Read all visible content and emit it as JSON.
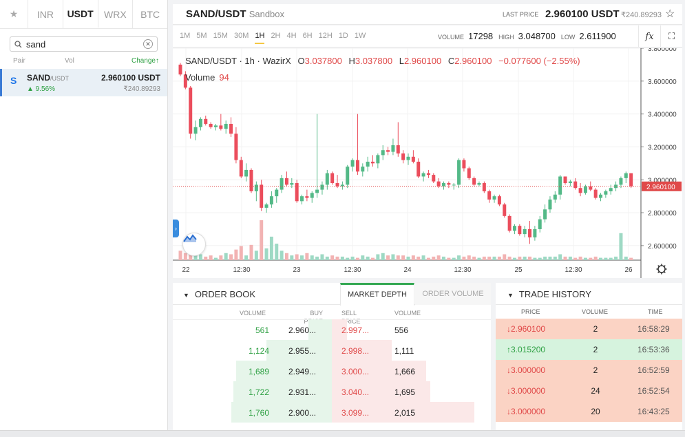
{
  "sidebar": {
    "tabs": [
      {
        "label": "★"
      },
      {
        "label": "INR"
      },
      {
        "label": "USDT"
      },
      {
        "label": "WRX"
      },
      {
        "label": "BTC"
      }
    ],
    "search_value": "sand",
    "columns": {
      "pair": "Pair",
      "vol": "Vol",
      "change": "Change↑"
    },
    "pair": {
      "logo": "S",
      "base": "SAND",
      "quote": "/USDT",
      "change": "▲ 9.56%",
      "price": "2.960100 USDT",
      "inr": "₹240.89293"
    }
  },
  "header": {
    "symbol": "SAND/USDT",
    "mode": "Sandbox",
    "last_price_label": "LAST PRICE",
    "last_price": "2.960100 USDT",
    "last_price_inr": "₹240.89293"
  },
  "toolbar": {
    "intervals": [
      "1M",
      "5M",
      "15M",
      "30M",
      "1H",
      "2H",
      "4H",
      "6H",
      "12H",
      "1D",
      "1W"
    ],
    "active_interval": "1H",
    "volume_label": "VOLUME",
    "volume": "17298",
    "high_label": "HIGH",
    "high": "3.048700",
    "low_label": "LOW",
    "low": "2.611900",
    "fx_icon": "fx",
    "fullscreen_icon": "⛶"
  },
  "chart_legend": {
    "title": "SAND/USDT · 1h · WazirX",
    "o_label": "O",
    "o": "3.037800",
    "h_label": "H",
    "h": "3.037800",
    "l_label": "L",
    "l": "2.960100",
    "c_label": "C",
    "c": "2.960100",
    "change": "−0.077600 (−2.55%)",
    "volume_label": "Volume",
    "volume": "94"
  },
  "chart_data": {
    "type": "candlestick",
    "y_ticks": [
      "3.800000",
      "3.600000",
      "3.400000",
      "3.200000",
      "3.000000",
      "2.800000",
      "2.600000"
    ],
    "ylim": [
      2.52,
      3.8
    ],
    "x_ticks": [
      "22",
      "12:30",
      "23",
      "12:30",
      "24",
      "12:30",
      "25",
      "12:30",
      "26"
    ],
    "last_price_label": "2.960100",
    "last_price": 2.9601,
    "candles_ohlcv": [
      [
        3.7,
        3.71,
        3.63,
        3.64,
        40
      ],
      [
        3.64,
        3.66,
        3.55,
        3.56,
        30
      ],
      [
        3.56,
        3.57,
        3.25,
        3.28,
        55
      ],
      [
        3.28,
        3.36,
        3.24,
        3.32,
        20
      ],
      [
        3.32,
        3.38,
        3.3,
        3.37,
        25
      ],
      [
        3.37,
        3.39,
        3.33,
        3.34,
        15
      ],
      [
        3.34,
        3.35,
        3.31,
        3.32,
        20
      ],
      [
        3.32,
        3.34,
        3.3,
        3.33,
        10
      ],
      [
        3.33,
        3.4,
        3.3,
        3.31,
        20
      ],
      [
        3.31,
        3.36,
        3.28,
        3.34,
        30
      ],
      [
        3.34,
        3.38,
        3.26,
        3.28,
        25
      ],
      [
        3.28,
        3.32,
        3.1,
        3.12,
        45
      ],
      [
        3.12,
        3.14,
        3.01,
        3.02,
        60
      ],
      [
        3.02,
        3.1,
        2.99,
        3.06,
        20
      ],
      [
        3.06,
        3.07,
        2.92,
        2.93,
        65
      ],
      [
        2.93,
        2.99,
        2.87,
        2.97,
        40
      ],
      [
        2.97,
        3.0,
        2.81,
        2.83,
        170
      ],
      [
        2.83,
        2.86,
        2.8,
        2.85,
        50
      ],
      [
        2.85,
        2.93,
        2.83,
        2.9,
        100
      ],
      [
        2.9,
        2.95,
        2.86,
        2.94,
        70
      ],
      [
        2.94,
        3.03,
        2.92,
        3.01,
        40
      ],
      [
        3.01,
        3.05,
        2.96,
        2.97,
        30
      ],
      [
        2.97,
        3.01,
        2.95,
        2.98,
        20
      ],
      [
        2.98,
        3.0,
        2.86,
        2.87,
        25
      ],
      [
        2.87,
        2.91,
        2.85,
        2.9,
        20
      ],
      [
        2.9,
        2.94,
        2.87,
        2.89,
        30
      ],
      [
        2.89,
        2.93,
        2.86,
        2.92,
        20
      ],
      [
        2.92,
        3.4,
        2.89,
        2.94,
        15
      ],
      [
        2.94,
        2.99,
        2.91,
        2.97,
        25
      ],
      [
        2.97,
        3.06,
        2.94,
        3.04,
        15
      ],
      [
        3.04,
        3.05,
        2.97,
        2.98,
        20
      ],
      [
        2.98,
        3.03,
        2.95,
        2.96,
        15
      ],
      [
        2.96,
        2.99,
        2.94,
        2.97,
        15
      ],
      [
        2.97,
        3.09,
        2.95,
        3.08,
        10
      ],
      [
        3.08,
        3.13,
        3.05,
        3.12,
        15
      ],
      [
        3.12,
        3.4,
        3.03,
        3.05,
        10
      ],
      [
        3.05,
        3.1,
        3.02,
        3.08,
        20
      ],
      [
        3.08,
        3.14,
        3.05,
        3.11,
        15
      ],
      [
        3.11,
        3.15,
        3.08,
        3.1,
        10
      ],
      [
        3.1,
        3.16,
        3.07,
        3.15,
        25
      ],
      [
        3.15,
        3.21,
        3.12,
        3.18,
        30
      ],
      [
        3.18,
        3.2,
        3.15,
        3.17,
        20
      ],
      [
        3.17,
        3.25,
        3.15,
        3.21,
        25
      ],
      [
        3.21,
        3.35,
        3.14,
        3.16,
        20
      ],
      [
        3.16,
        3.18,
        3.1,
        3.12,
        20
      ],
      [
        3.12,
        3.16,
        3.09,
        3.14,
        15
      ],
      [
        3.14,
        3.18,
        3.1,
        3.11,
        20
      ],
      [
        3.11,
        3.13,
        3.01,
        3.02,
        15
      ],
      [
        3.02,
        3.05,
        2.99,
        3.04,
        20
      ],
      [
        3.04,
        3.06,
        3.01,
        3.03,
        10
      ],
      [
        3.03,
        3.04,
        2.98,
        2.99,
        15
      ],
      [
        2.99,
        3.01,
        2.95,
        2.96,
        20
      ],
      [
        2.96,
        2.99,
        2.94,
        2.98,
        15
      ],
      [
        2.98,
        2.99,
        2.95,
        2.97,
        10
      ],
      [
        2.97,
        2.98,
        2.94,
        2.97,
        10
      ],
      [
        2.97,
        3.13,
        2.95,
        3.12,
        20
      ],
      [
        3.12,
        3.13,
        3.05,
        3.07,
        15
      ],
      [
        3.07,
        3.08,
        3.0,
        3.01,
        20
      ],
      [
        3.01,
        3.02,
        2.96,
        2.97,
        15
      ],
      [
        2.97,
        2.99,
        2.96,
        2.98,
        10
      ],
      [
        2.98,
        2.99,
        2.92,
        2.93,
        15
      ],
      [
        2.93,
        2.94,
        2.86,
        2.88,
        15
      ],
      [
        2.88,
        2.91,
        2.86,
        2.9,
        15
      ],
      [
        2.9,
        2.91,
        2.84,
        2.85,
        15
      ],
      [
        2.85,
        2.86,
        2.77,
        2.78,
        25
      ],
      [
        2.78,
        2.79,
        2.68,
        2.69,
        15
      ],
      [
        2.69,
        2.73,
        2.67,
        2.72,
        10
      ],
      [
        2.72,
        2.73,
        2.66,
        2.67,
        15
      ],
      [
        2.67,
        2.72,
        2.65,
        2.7,
        15
      ],
      [
        2.7,
        2.75,
        2.61,
        2.65,
        15
      ],
      [
        2.65,
        2.72,
        2.63,
        2.7,
        10
      ],
      [
        2.7,
        2.78,
        2.68,
        2.76,
        10
      ],
      [
        2.76,
        2.85,
        2.74,
        2.82,
        15
      ],
      [
        2.82,
        2.9,
        2.8,
        2.88,
        15
      ],
      [
        2.88,
        2.93,
        2.86,
        2.91,
        15
      ],
      [
        2.91,
        3.03,
        2.88,
        3.02,
        25
      ],
      [
        3.02,
        3.02,
        2.97,
        2.98,
        15
      ],
      [
        2.98,
        3.0,
        2.96,
        2.99,
        15
      ],
      [
        2.99,
        3.01,
        2.94,
        2.95,
        10
      ],
      [
        2.95,
        2.98,
        2.9,
        2.92,
        15
      ],
      [
        2.92,
        2.97,
        2.91,
        2.96,
        10
      ],
      [
        2.96,
        2.99,
        2.93,
        2.94,
        10
      ],
      [
        2.94,
        2.95,
        2.88,
        2.89,
        15
      ],
      [
        2.89,
        2.92,
        2.87,
        2.91,
        10
      ],
      [
        2.91,
        2.94,
        2.89,
        2.93,
        10
      ],
      [
        2.93,
        2.97,
        2.91,
        2.95,
        10
      ],
      [
        2.95,
        2.99,
        2.93,
        2.97,
        15
      ],
      [
        2.97,
        3.02,
        2.95,
        3.01,
        115
      ],
      [
        3.01,
        3.05,
        2.98,
        3.04,
        15
      ],
      [
        3.04,
        3.04,
        2.95,
        2.96,
        10
      ]
    ]
  },
  "orderbook": {
    "title": "ORDER BOOK",
    "tabs": {
      "market_depth": "MARKET DEPTH",
      "order_volume": "ORDER VOLUME"
    },
    "columns": {
      "volume": "VOLUME",
      "buy_price": "BUY PRICE",
      "sell_price": "SELL PRICE",
      "volume2": "VOLUME"
    },
    "rows": [
      {
        "buy_vol": "561",
        "buy_price": "2.960...",
        "sell_price": "2.997...",
        "sell_vol": "556",
        "buy_depth": 0.1,
        "sell_depth": 0.08
      },
      {
        "buy_vol": "1,124",
        "buy_price": "2.955...",
        "sell_price": "2.998...",
        "sell_vol": "1,111",
        "buy_depth": 0.28,
        "sell_depth": 0.31
      },
      {
        "buy_vol": "1,689",
        "buy_price": "2.949...",
        "sell_price": "3.000...",
        "sell_vol": "1,666",
        "buy_depth": 0.41,
        "sell_depth": 0.49
      },
      {
        "buy_vol": "1,722",
        "buy_price": "2.931...",
        "sell_price": "3.040...",
        "sell_vol": "1,695",
        "buy_depth": 0.42,
        "sell_depth": 0.51
      },
      {
        "buy_vol": "1,760",
        "buy_price": "2.900...",
        "sell_price": "3.099...",
        "sell_vol": "2,015",
        "buy_depth": 0.43,
        "sell_depth": 0.74
      }
    ]
  },
  "trades": {
    "title": "TRADE HISTORY",
    "columns": {
      "price": "PRICE",
      "volume": "VOLUME",
      "time": "TIME"
    },
    "rows": [
      {
        "price": "↓2.960100",
        "volume": "2",
        "time": "16:58:29",
        "dir": "dn"
      },
      {
        "price": "↑3.015200",
        "volume": "2",
        "time": "16:53:36",
        "dir": "up"
      },
      {
        "price": "↓3.000000",
        "volume": "2",
        "time": "16:52:59",
        "dir": "dn"
      },
      {
        "price": "↓3.000000",
        "volume": "24",
        "time": "16:52:54",
        "dir": "dn"
      },
      {
        "price": "↓3.000000",
        "volume": "20",
        "time": "16:43:25",
        "dir": "dn"
      }
    ]
  },
  "colors": {
    "up": "#53b987",
    "down": "#eb4d5c",
    "buy_text": "#2ea043",
    "sell_text": "#e04949"
  }
}
